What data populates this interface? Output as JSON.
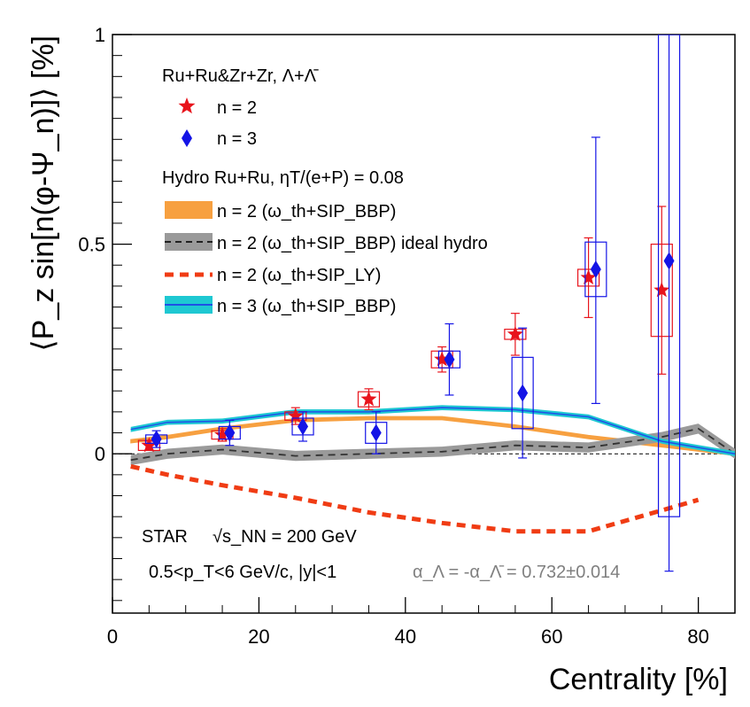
{
  "chart_data": {
    "type": "line",
    "title": "",
    "xlabel": "Centrality [%]",
    "ylabel": "⟨P_z sin[n(φ-Ψ_n)]⟩ [%]",
    "xlim": [
      0,
      85
    ],
    "ylim": [
      -0.38,
      1.0
    ],
    "x_ticks": [
      0,
      20,
      40,
      60,
      80
    ],
    "x_tick_labels": [
      "0",
      "20",
      "40",
      "60",
      "80"
    ],
    "y_ticks": [
      0,
      0.5,
      1
    ],
    "y_tick_labels": [
      "0",
      "0.5",
      "1"
    ],
    "legend": {
      "header_data": "Ru+Ru&Zr+Zr, Λ+Λ̄",
      "data_entries": [
        "n = 2",
        "n = 3"
      ],
      "header_hydro": "Hydro Ru+Ru, ηT/(e+P) = 0.08",
      "hydro_entries": [
        "n = 2 (ω_th+SIP_BBP)",
        "n = 2 (ω_th+SIP_BBP) ideal hydro",
        "n = 2 (ω_th+SIP_LY)",
        "n = 3 (ω_th+SIP_BBP)"
      ]
    },
    "annotations": {
      "experiment": "STAR",
      "energy": "√s_NN = 200 GeV",
      "cuts": "0.5<p_T<6 GeV/c, |y|<1",
      "alpha": "α_Λ = -α_Λ̄ = 0.732±0.014"
    },
    "series": [
      {
        "name": "n = 2",
        "kind": "data",
        "marker": "star",
        "color": "#e8141c",
        "x": [
          5,
          15,
          25,
          35,
          45,
          55,
          65,
          75
        ],
        "y": [
          0.02,
          0.045,
          0.09,
          0.13,
          0.225,
          0.285,
          0.42,
          0.39
        ],
        "stat_low": [
          0.01,
          0.015,
          0.02,
          0.025,
          0.03,
          0.05,
          0.095,
          0.2
        ],
        "stat_high": [
          0.01,
          0.015,
          0.02,
          0.025,
          0.03,
          0.05,
          0.095,
          0.2
        ],
        "sys_low": [
          0.012,
          0.01,
          0.01,
          0.018,
          0.02,
          0.012,
          0.02,
          0.11
        ],
        "sys_high": [
          0.012,
          0.01,
          0.01,
          0.018,
          0.02,
          0.012,
          0.02,
          0.11
        ]
      },
      {
        "name": "n = 3",
        "kind": "data",
        "marker": "diamond",
        "color": "#1414e6",
        "x": [
          6,
          16,
          26,
          36,
          46,
          56,
          66,
          76
        ],
        "y": [
          0.035,
          0.05,
          0.065,
          0.05,
          0.225,
          0.145,
          0.44,
          0.46
        ],
        "stat_low": [
          0.02,
          0.03,
          0.035,
          0.05,
          0.085,
          0.155,
          0.32,
          0.74
        ],
        "stat_high": [
          0.02,
          0.03,
          0.035,
          0.05,
          0.085,
          0.155,
          0.315,
          0.54
        ],
        "sys_low": [
          0.01,
          0.015,
          0.02,
          0.025,
          0.02,
          0.085,
          0.065,
          0.61
        ],
        "sys_high": [
          0.01,
          0.015,
          0.02,
          0.025,
          0.02,
          0.085,
          0.065,
          0.54
        ]
      },
      {
        "name": "n = 2 (ω_th+SIP_BBP)",
        "kind": "band",
        "color": "#f7a040",
        "x": [
          2.5,
          7.5,
          15,
          25,
          35,
          45,
          55,
          65,
          75,
          85
        ],
        "y": [
          0.03,
          0.04,
          0.06,
          0.08,
          0.085,
          0.085,
          0.065,
          0.04,
          0.02,
          0.0
        ],
        "halfwidth": 0.004
      },
      {
        "name": "n = 2 (ω_th+SIP_BBP) ideal hydro",
        "kind": "band-dashed",
        "color": "#9a9a9a",
        "x": [
          2.5,
          7.5,
          15,
          25,
          35,
          45,
          55,
          65,
          75,
          80,
          85
        ],
        "y": [
          -0.015,
          0.0,
          0.01,
          -0.005,
          0.0,
          0.005,
          0.02,
          0.015,
          0.04,
          0.06,
          0.0
        ],
        "halfwidth": 0.012
      },
      {
        "name": "n = 2 (ω_th+SIP_LY)",
        "kind": "dashed",
        "color": "#f03c14",
        "x": [
          2.5,
          7.5,
          15,
          25,
          35,
          45,
          55,
          65,
          75,
          80
        ],
        "y": [
          -0.03,
          -0.05,
          -0.075,
          -0.105,
          -0.14,
          -0.165,
          -0.185,
          -0.185,
          -0.135,
          -0.11
        ]
      },
      {
        "name": "n = 3 (ω_th+SIP_BBP)",
        "kind": "band-line",
        "color": "#1ec8d2",
        "line_color": "#1e50e6",
        "x": [
          2.5,
          7.5,
          15,
          25,
          35,
          45,
          55,
          65,
          75,
          85
        ],
        "y": [
          0.058,
          0.075,
          0.078,
          0.1,
          0.1,
          0.11,
          0.105,
          0.088,
          0.03,
          0.0
        ],
        "halfwidth": 0.006
      }
    ]
  }
}
